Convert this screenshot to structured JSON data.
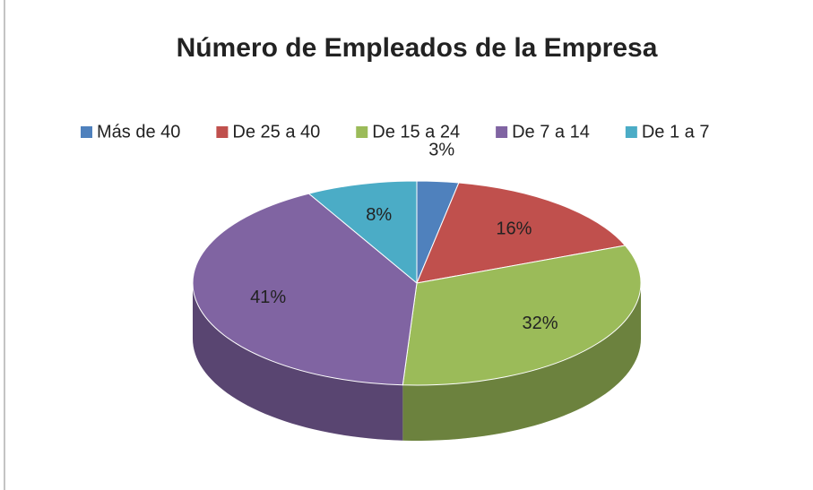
{
  "chart_data": {
    "type": "pie",
    "title": "Número de Empleados de la Empresa",
    "categories": [
      "Más de 40",
      "De 25 a 40",
      "De 15 a 24",
      "De 7 a 14",
      "De 1 a 7"
    ],
    "values": [
      3,
      16,
      32,
      41,
      8
    ],
    "value_labels": [
      "3%",
      "16%",
      "32%",
      "41%",
      "8%"
    ],
    "colors": [
      "#4f81bd",
      "#c0504d",
      "#9bbb59",
      "#8064a2",
      "#4bacc6"
    ],
    "legend": "top"
  }
}
